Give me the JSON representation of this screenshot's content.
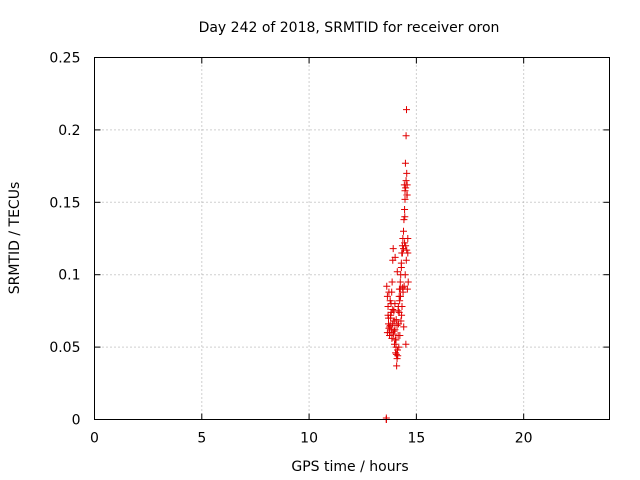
{
  "chart_data": {
    "type": "scatter",
    "title": "Day 242 of 2018, SRMTID for receiver oron",
    "xlabel": "GPS time / hours",
    "ylabel": "SRMTID / TECUs",
    "xlim": [
      0,
      24
    ],
    "ylim": [
      0,
      0.25
    ],
    "xticks": [
      0,
      5,
      10,
      15,
      20
    ],
    "xtick_labels": [
      "0",
      "5",
      "10",
      "15",
      "20"
    ],
    "yticks": [
      0,
      0.05,
      0.1,
      0.15,
      0.2,
      0.25
    ],
    "ytick_labels": [
      "0",
      "0.05",
      "0.1",
      "0.15",
      "0.2",
      "0.25"
    ],
    "grid": true,
    "marker": "plus",
    "color": "#e00000",
    "series": [
      {
        "name": "SRMTID",
        "x": [
          13.6,
          13.6,
          13.6,
          13.62,
          13.65,
          13.68,
          13.7,
          13.72,
          13.75,
          13.78,
          13.8,
          13.82,
          13.85,
          13.87,
          13.9,
          13.92,
          13.95,
          13.97,
          14.0,
          14.02,
          14.05,
          14.07,
          14.1,
          14.12,
          14.15,
          14.17,
          14.2,
          14.22,
          14.25,
          14.27,
          14.3,
          14.32,
          14.35,
          14.37,
          14.4,
          14.42,
          14.45,
          14.47,
          14.5,
          14.52,
          14.55,
          14.57,
          14.6,
          14.62,
          13.65,
          13.7,
          13.75,
          13.8,
          13.85,
          13.9,
          13.95,
          14.0,
          14.05,
          14.1,
          14.15,
          14.2,
          14.25,
          14.3,
          14.35,
          14.4,
          14.45,
          14.5,
          14.55,
          14.6,
          13.72,
          13.78,
          13.83,
          13.88,
          13.93,
          13.98,
          14.03,
          14.08,
          14.13,
          14.18,
          14.23,
          14.28,
          14.33,
          14.38,
          14.43,
          14.48,
          14.53,
          14.58,
          13.68,
          13.76,
          13.86,
          13.96,
          14.06,
          14.16,
          14.26,
          14.36,
          14.46,
          14.56,
          14.01,
          14.11,
          14.21,
          14.31,
          14.41,
          14.51,
          14.44,
          14.49,
          14.54,
          14.47,
          14.52,
          14.57
        ],
        "y": [
          0.0,
          0.0,
          0.001,
          0.092,
          0.085,
          0.078,
          0.07,
          0.063,
          0.06,
          0.065,
          0.072,
          0.08,
          0.088,
          0.095,
          0.11,
          0.118,
          0.075,
          0.068,
          0.062,
          0.055,
          0.05,
          0.045,
          0.042,
          0.048,
          0.058,
          0.066,
          0.074,
          0.082,
          0.09,
          0.1,
          0.108,
          0.115,
          0.12,
          0.125,
          0.13,
          0.138,
          0.145,
          0.152,
          0.16,
          0.165,
          0.17,
          0.155,
          0.125,
          0.095,
          0.06,
          0.066,
          0.058,
          0.07,
          0.062,
          0.076,
          0.068,
          0.08,
          0.055,
          0.065,
          0.075,
          0.085,
          0.095,
          0.105,
          0.115,
          0.118,
          0.122,
          0.12,
          0.117,
          0.115,
          0.088,
          0.082,
          0.074,
          0.066,
          0.059,
          0.052,
          0.046,
          0.037,
          0.044,
          0.05,
          0.058,
          0.068,
          0.078,
          0.088,
          0.092,
          0.1,
          0.11,
          0.09,
          0.072,
          0.064,
          0.056,
          0.061,
          0.069,
          0.078,
          0.085,
          0.091,
          0.14,
          0.155,
          0.112,
          0.102,
          0.09,
          0.072,
          0.064,
          0.052,
          0.162,
          0.177,
          0.214,
          0.158,
          0.196,
          0.162
        ]
      }
    ]
  }
}
